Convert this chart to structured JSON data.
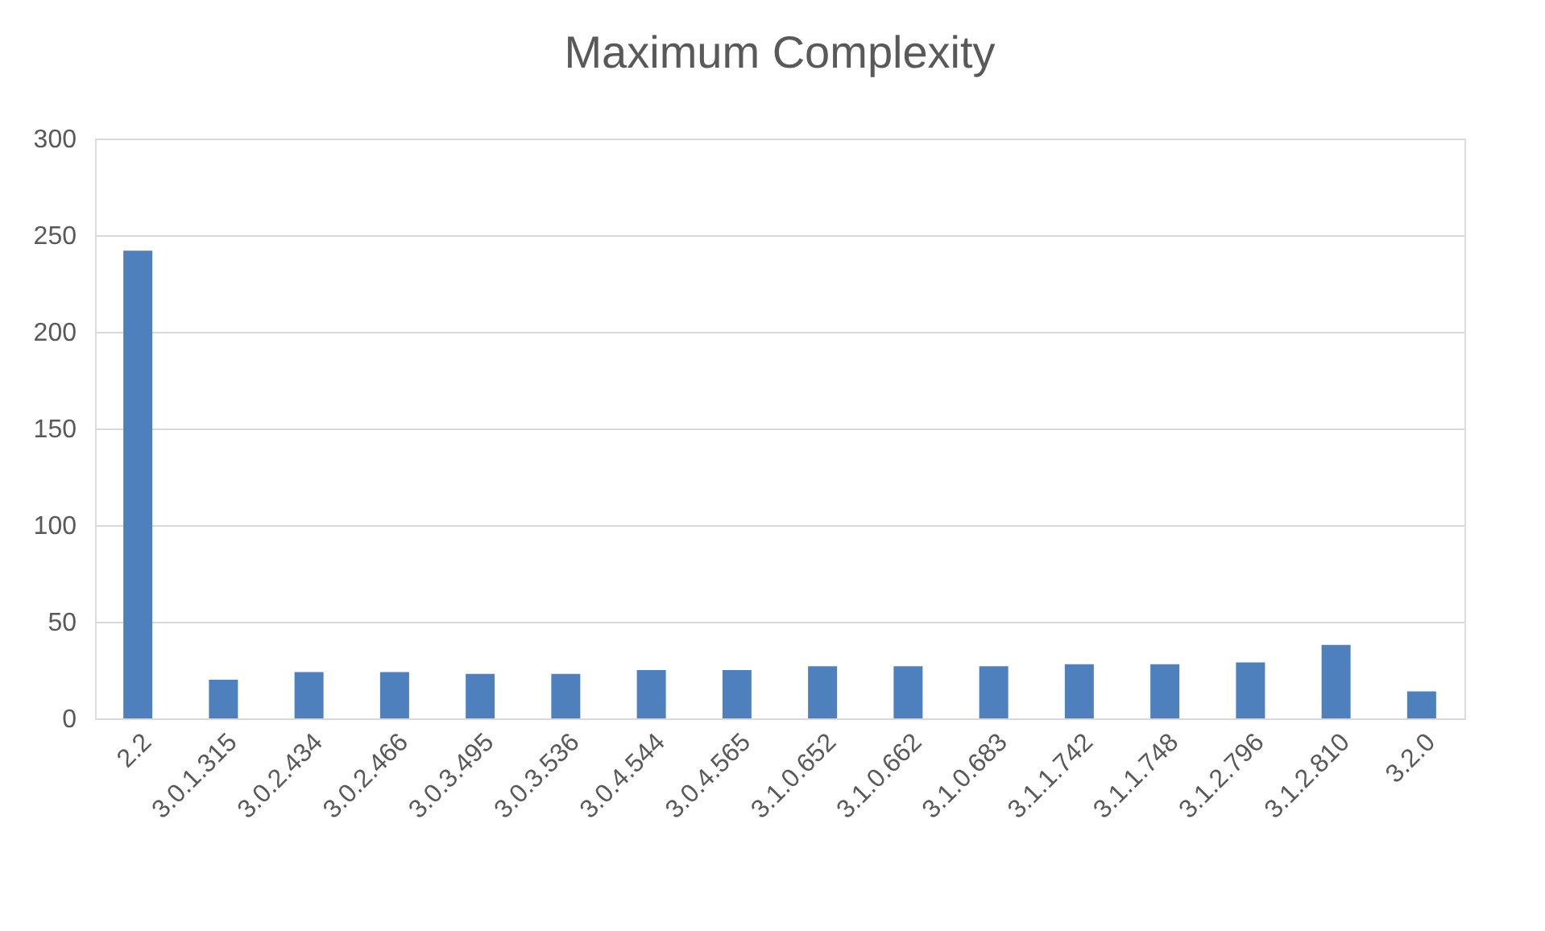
{
  "chart_data": {
    "type": "bar",
    "title": "Maximum Complexity",
    "categories": [
      "2.2",
      "3.0.1.315",
      "3.0.2.434",
      "3.0.2.466",
      "3.0.3.495",
      "3.0.3.536",
      "3.0.4.544",
      "3.0.4.565",
      "3.1.0.652",
      "3.1.0.662",
      "3.1.0.683",
      "3.1.1.742",
      "3.1.1.748",
      "3.1.2.796",
      "3.1.2.810",
      "3.2.0"
    ],
    "values": [
      242,
      20,
      24,
      24,
      23,
      23,
      25,
      25,
      27,
      27,
      27,
      28,
      28,
      29,
      38,
      14
    ],
    "color": "#4e80bd",
    "ylim": [
      0,
      300
    ],
    "yticks": [
      0,
      50,
      100,
      150,
      200,
      250,
      300
    ],
    "grid": "y"
  }
}
